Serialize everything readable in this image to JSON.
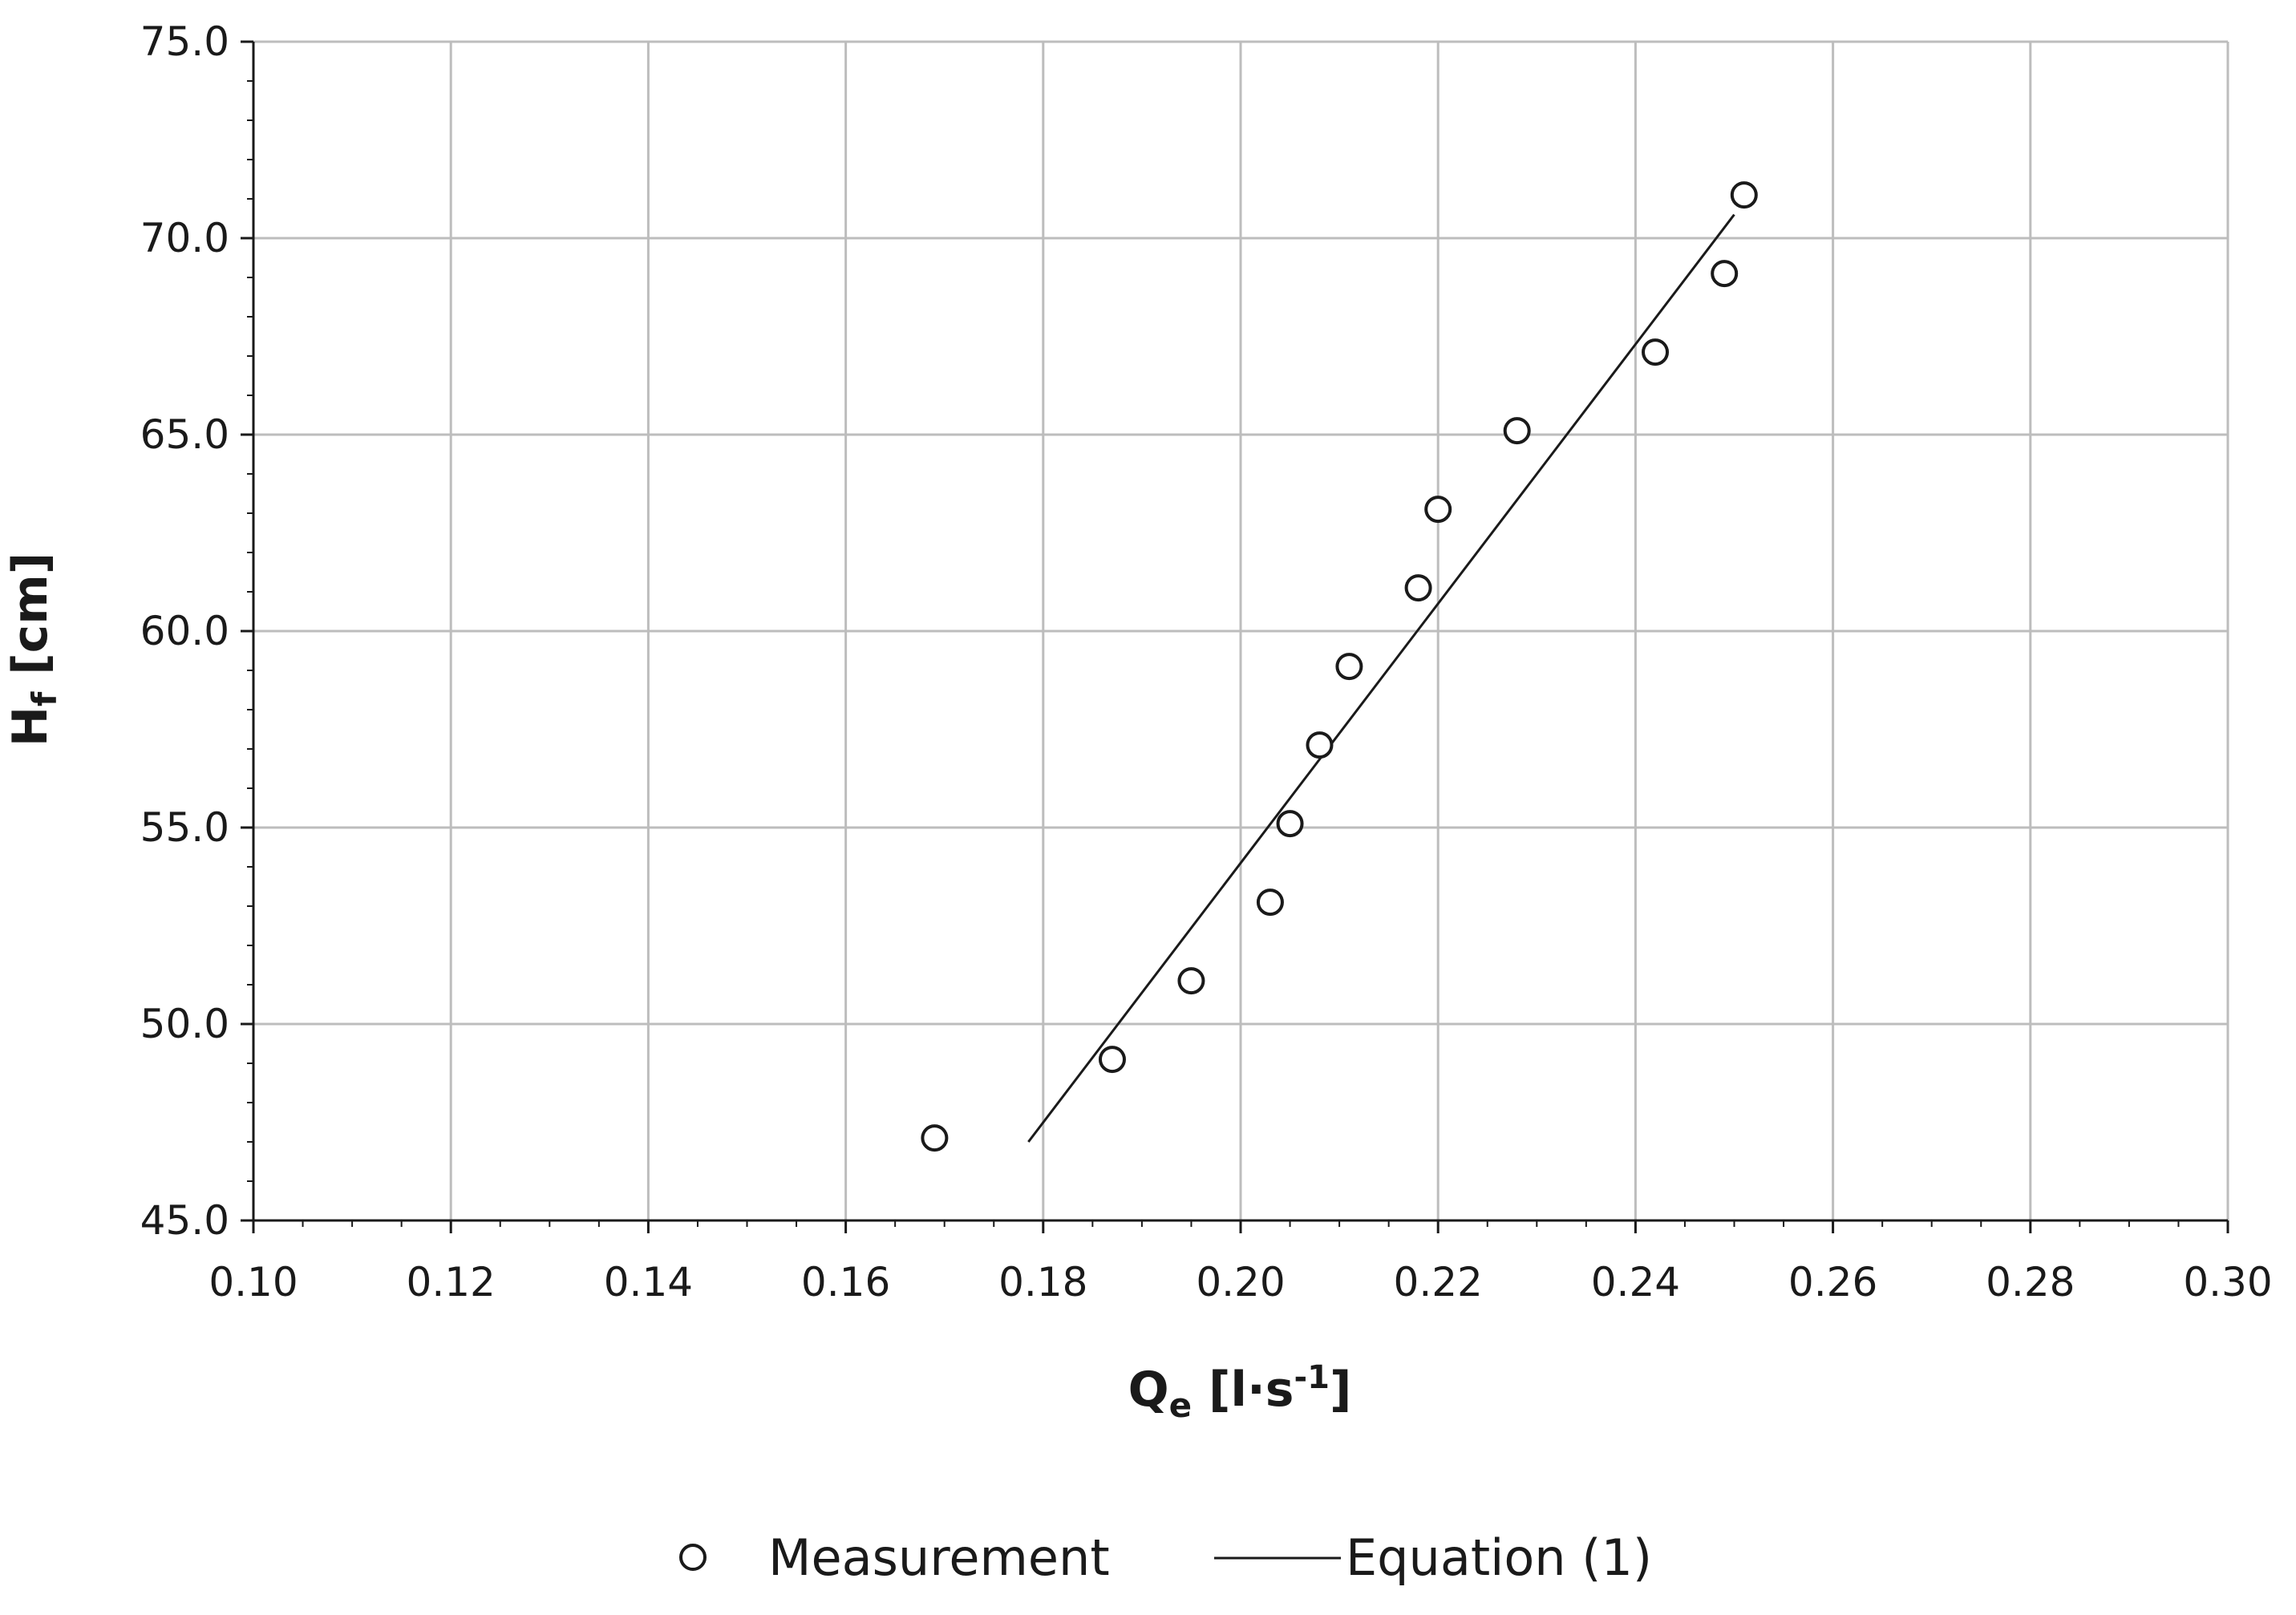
{
  "chart_data": {
    "type": "scatter",
    "title": "",
    "xlabel": {
      "main": "Q",
      "sub": "e",
      "unit_open": " [l·s",
      "unit_sup": "-1",
      "unit_close": "]"
    },
    "ylabel": {
      "main": "H",
      "sub": "f",
      "unit": " [cm]"
    },
    "xlim": [
      0.1,
      0.3
    ],
    "ylim": [
      45.0,
      75.0
    ],
    "x_ticks": [
      "0.10",
      "0.12",
      "0.14",
      "0.16",
      "0.18",
      "0.20",
      "0.22",
      "0.24",
      "0.26",
      "0.28",
      "0.30"
    ],
    "y_ticks": [
      "45.0",
      "50.0",
      "55.0",
      "60.0",
      "65.0",
      "70.0",
      "75.0"
    ],
    "grid": true,
    "legend_position": "bottom",
    "series": [
      {
        "name": "Measurement",
        "kind": "markers",
        "marker": "open-circle",
        "points": [
          {
            "x": 0.169,
            "y": 47.1
          },
          {
            "x": 0.187,
            "y": 49.1
          },
          {
            "x": 0.195,
            "y": 51.1
          },
          {
            "x": 0.203,
            "y": 53.1
          },
          {
            "x": 0.205,
            "y": 55.1
          },
          {
            "x": 0.208,
            "y": 57.1
          },
          {
            "x": 0.211,
            "y": 59.1
          },
          {
            "x": 0.218,
            "y": 61.1
          },
          {
            "x": 0.22,
            "y": 63.1
          },
          {
            "x": 0.228,
            "y": 65.1
          },
          {
            "x": 0.242,
            "y": 67.1
          },
          {
            "x": 0.249,
            "y": 69.1
          },
          {
            "x": 0.251,
            "y": 71.1
          }
        ]
      },
      {
        "name": "Equation (1)",
        "kind": "line",
        "points": [
          {
            "x": 0.1785,
            "y": 47.0
          },
          {
            "x": 0.25,
            "y": 70.6
          }
        ]
      }
    ],
    "colors": {
      "marker": "#1a1a1a",
      "line": "#1a1a1a",
      "grid": "#bdbdbd",
      "axis": "#1a1a1a"
    }
  }
}
